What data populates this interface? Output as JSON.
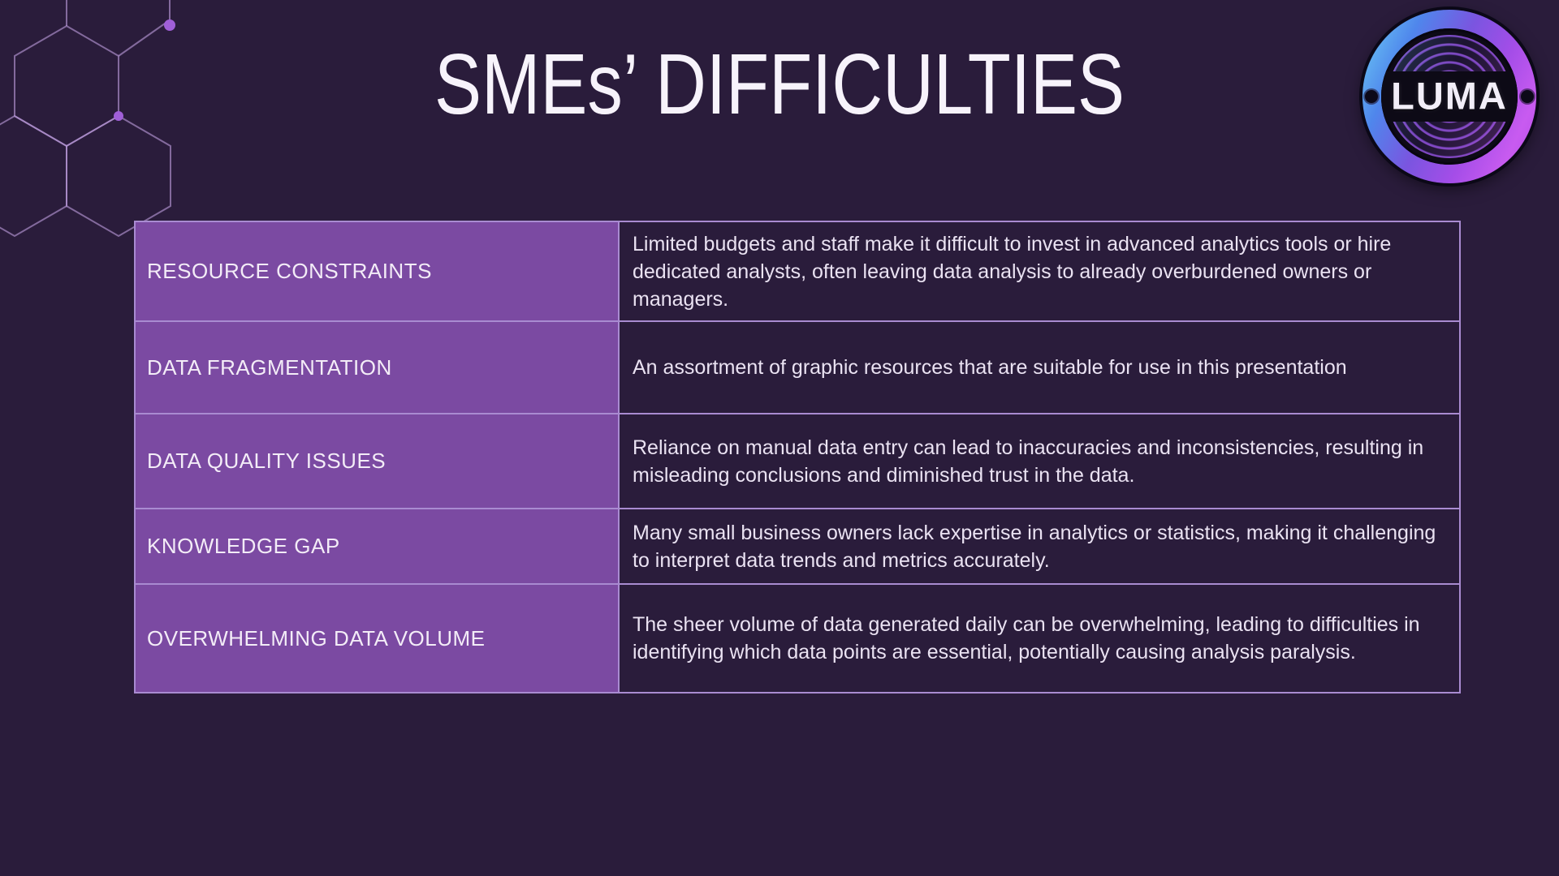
{
  "title": "SMEs’ DIFFICULTIES",
  "logo": {
    "text": "LUMA"
  },
  "table": {
    "rows": [
      {
        "label": "RESOURCE CONSTRAINTS",
        "description": "Limited budgets and staff make it difficult to invest in advanced analytics tools or hire dedicated analysts, often leaving data analysis to already overburdened owners or managers."
      },
      {
        "label": "DATA FRAGMENTATION",
        "description": "An assortment of graphic resources that are suitable for use in this presentation"
      },
      {
        "label": "DATA QUALITY ISSUES",
        "description": "Reliance on manual data entry can lead to inaccuracies and inconsistencies, resulting in misleading conclusions and diminished trust in the data."
      },
      {
        "label": "KNOWLEDGE GAP",
        "description": "Many small business owners lack expertise in analytics or statistics, making it challenging to interpret data trends and metrics accurately."
      },
      {
        "label": "OVERWHELMING DATA VOLUME",
        "description": "The sheer volume of data generated daily can be overwhelming, leading to difficulties in identifying which data points are essential, potentially causing analysis paralysis."
      }
    ]
  },
  "colors": {
    "background": "#2a1c3b",
    "table_label_cell": "#7b4aa2",
    "table_border": "#a98bd1",
    "title_text": "#f7f3fb",
    "body_text": "#eae2f2",
    "hexagon_stroke": "#bf9fe0",
    "hexagon_dot": "#a05fd8",
    "logo_gradient_start": "#6fd3f5",
    "logo_gradient_end": "#c85bf0"
  }
}
